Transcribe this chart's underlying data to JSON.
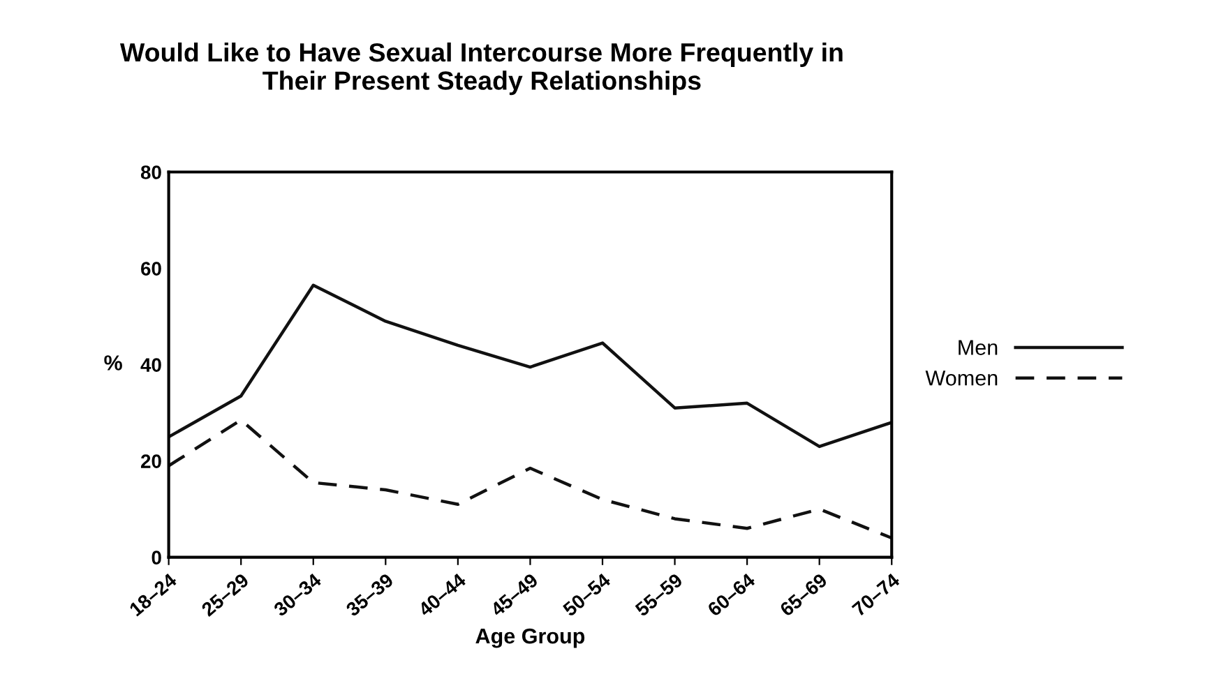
{
  "chart_data": {
    "type": "line",
    "title": "Would Like to Have Sexual Intercourse More Frequently in\nTheir Present Steady Relationships",
    "xlabel": "Age Group",
    "ylabel": "%",
    "categories": [
      "18–24",
      "25–29",
      "30–34",
      "35–39",
      "40–44",
      "45–49",
      "50–54",
      "55–59",
      "60–64",
      "65–69",
      "70–74"
    ],
    "series": [
      {
        "name": "Men",
        "color": "#111111",
        "line_style": "solid",
        "values": [
          25,
          33.5,
          56.5,
          49,
          44,
          39.5,
          44.5,
          31,
          32,
          23,
          28
        ]
      },
      {
        "name": "Women",
        "color": "#111111",
        "line_style": "dashed",
        "values": [
          19,
          28.5,
          15.5,
          14,
          11,
          18.5,
          12,
          8,
          6,
          10,
          4
        ]
      }
    ],
    "ylim": [
      0,
      80
    ],
    "yticks": [
      0,
      20,
      40,
      60,
      80
    ],
    "grid": false,
    "legend": "right",
    "marker": "none"
  }
}
